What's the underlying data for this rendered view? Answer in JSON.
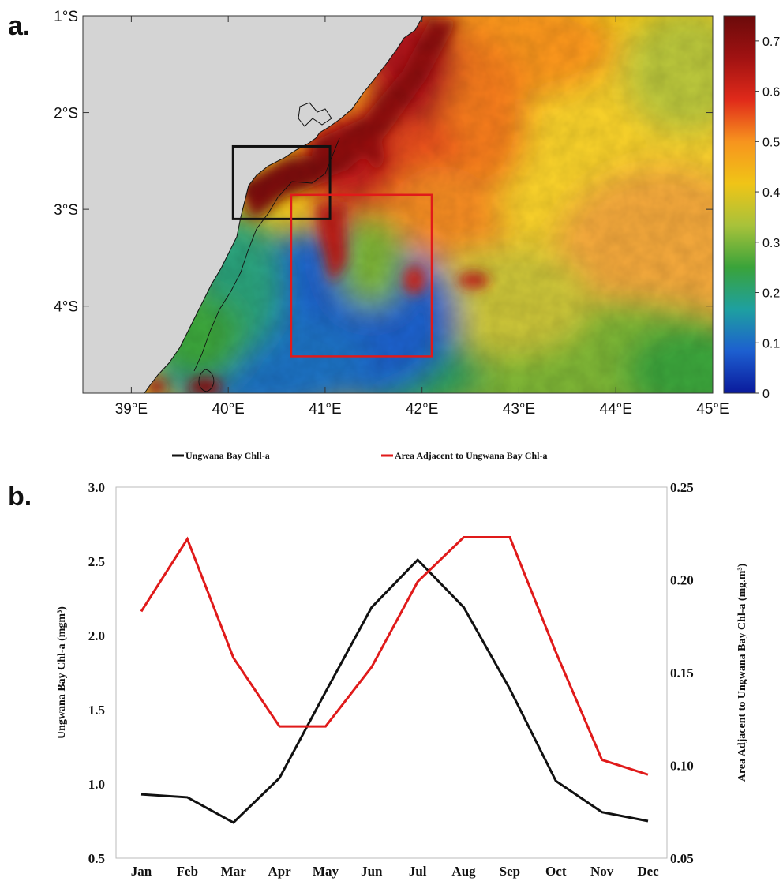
{
  "panels": {
    "a": "a.",
    "b": "b."
  },
  "chart_data": [
    {
      "type": "heatmap",
      "x_ticks": [
        "39°E",
        "40°E",
        "41°E",
        "42°E",
        "43°E",
        "44°E",
        "45°E"
      ],
      "y_ticks": [
        "1°S",
        "2°S",
        "3°S",
        "4°S"
      ],
      "xlim": [
        38.5,
        45
      ],
      "ylim": [
        -4.9,
        -1
      ],
      "colorbar": {
        "ticks": [
          "0",
          "0.1",
          "0.2",
          "0.3",
          "0.4",
          "0.5",
          "0.6",
          "0.7"
        ],
        "range": [
          0,
          0.75
        ],
        "colors": [
          "#0a1a9c",
          "#1d5fd0",
          "#1ea0a0",
          "#3aa33a",
          "#a8c23a",
          "#f0c417",
          "#f7941e",
          "#e02a1a",
          "#a01212",
          "#6b0a0a"
        ]
      },
      "land_color": "#d4d4d4",
      "boxes": [
        {
          "name": "Ungwana Bay",
          "lon": [
            40.05,
            41.05
          ],
          "lat": [
            -3.1,
            -2.35
          ],
          "color": "#111111"
        },
        {
          "name": "Area Adjacent to Ungwana Bay",
          "lon": [
            40.65,
            42.1
          ],
          "lat": [
            -4.52,
            -2.85
          ],
          "color": "#e01a1a"
        }
      ]
    },
    {
      "type": "line",
      "categories": [
        "Jan",
        "Feb",
        "Mar",
        "Apr",
        "May",
        "Jun",
        "Jul",
        "Aug",
        "Sep",
        "Oct",
        "Nov",
        "Dec"
      ],
      "series": [
        {
          "name": "Ungwana Bay Chll-a",
          "axis": "left",
          "color": "#111111",
          "values": [
            0.93,
            0.91,
            0.74,
            1.04,
            1.62,
            2.19,
            2.51,
            2.19,
            1.64,
            1.02,
            0.81,
            0.75
          ]
        },
        {
          "name": "Area Adjacent to Ungwana Bay Chl-a",
          "axis": "right",
          "color": "#e01a1a",
          "values": [
            0.183,
            0.222,
            0.158,
            0.121,
            0.121,
            0.153,
            0.199,
            0.223,
            0.223,
            0.161,
            0.103,
            0.095
          ]
        }
      ],
      "ylabel_left": "Ungwana Bay Chl-a (mgm³)",
      "ylabel_right": "Area Adjacent to Ungwana Bay Chl-a (mg.m³)",
      "ylim_left": [
        0.5,
        3.0
      ],
      "ylim_right": [
        0.05,
        0.25
      ],
      "left_ticks": [
        "0.5",
        "1.0",
        "1.5",
        "2.0",
        "2.5",
        "3.0"
      ],
      "right_ticks": [
        "0.05",
        "0.10",
        "0.15",
        "0.20",
        "0.25"
      ],
      "legend_position": "top"
    }
  ]
}
